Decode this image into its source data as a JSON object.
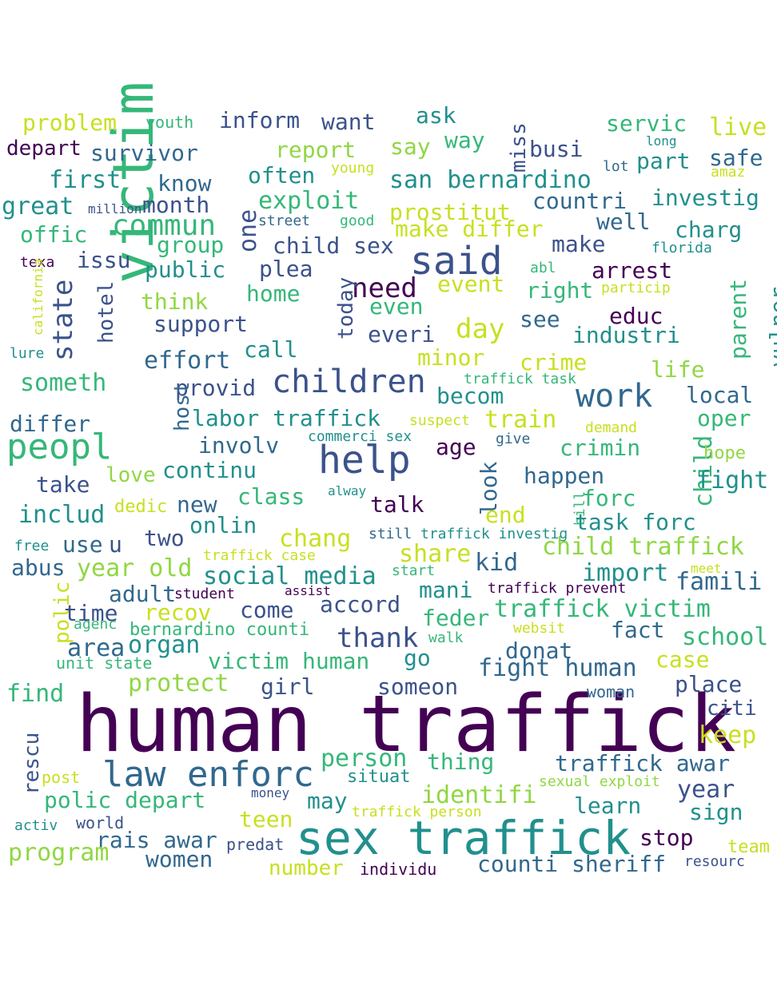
{
  "word_cloud": {
    "palette": {
      "purple": "#440154",
      "indigo": "#3b528b",
      "blue": "#31688e",
      "teal": "#21908d",
      "green": "#35b779",
      "lime": "#90d743",
      "yellow": "#c8e020"
    },
    "words": [
      {
        "text": "human traffick",
        "color": "#440154"
      },
      {
        "text": "sex traffick",
        "color": "#21908d"
      },
      {
        "text": "victim",
        "color": "#35b779"
      },
      {
        "text": "law enforc",
        "color": "#31688e"
      },
      {
        "text": "help",
        "color": "#3b528b"
      },
      {
        "text": "said",
        "color": "#3b528b"
      },
      {
        "text": "peopl",
        "color": "#35b779"
      },
      {
        "text": "work",
        "color": "#31688e"
      },
      {
        "text": "children",
        "color": "#3b528b"
      },
      {
        "text": "state",
        "color": "#3b528b"
      },
      {
        "text": "commun",
        "color": "#35b779"
      },
      {
        "text": "child traffick",
        "color": "#90d743"
      },
      {
        "text": "traffick victim",
        "color": "#35b779"
      },
      {
        "text": "polic depart",
        "color": "#35b779"
      },
      {
        "text": "counti sheriff",
        "color": "#31688e"
      },
      {
        "text": "traffick awar",
        "color": "#31688e"
      },
      {
        "text": "need",
        "color": "#440154"
      },
      {
        "text": "one",
        "color": "#3b528b"
      },
      {
        "text": "san bernardino",
        "color": "#21908d"
      },
      {
        "text": "problem",
        "color": "#c8e020"
      },
      {
        "text": "youth",
        "color": "#35b779"
      },
      {
        "text": "inform",
        "color": "#3b528b"
      },
      {
        "text": "want",
        "color": "#3b528b"
      },
      {
        "text": "ask",
        "color": "#21908d"
      },
      {
        "text": "miss",
        "color": "#3b528b"
      },
      {
        "text": "servic",
        "color": "#35b779"
      },
      {
        "text": "live",
        "color": "#c8e020"
      },
      {
        "text": "depart",
        "color": "#440154"
      },
      {
        "text": "survivor",
        "color": "#31688e"
      },
      {
        "text": "report",
        "color": "#90d743"
      },
      {
        "text": "say",
        "color": "#90d743"
      },
      {
        "text": "way",
        "color": "#35b779"
      },
      {
        "text": "busi",
        "color": "#3b528b"
      },
      {
        "text": "long",
        "color": "#21908d"
      },
      {
        "text": "safe",
        "color": "#31688e"
      },
      {
        "text": "first",
        "color": "#21908d"
      },
      {
        "text": "know",
        "color": "#31688e"
      },
      {
        "text": "often",
        "color": "#21908d"
      },
      {
        "text": "young",
        "color": "#c8e020"
      },
      {
        "text": "part",
        "color": "#21908d"
      },
      {
        "text": "lot",
        "color": "#31688e"
      },
      {
        "text": "amaz",
        "color": "#c8e020"
      },
      {
        "text": "great",
        "color": "#21908d"
      },
      {
        "text": "million",
        "color": "#3b528b"
      },
      {
        "text": "month",
        "color": "#3b528b"
      },
      {
        "text": "exploit",
        "color": "#35b779"
      },
      {
        "text": "prostitut",
        "color": "#c8e020"
      },
      {
        "text": "countri",
        "color": "#31688e"
      },
      {
        "text": "investig",
        "color": "#21908d"
      },
      {
        "text": "offic",
        "color": "#35b779"
      },
      {
        "text": "street",
        "color": "#31688e"
      },
      {
        "text": "good",
        "color": "#35b779"
      },
      {
        "text": "make differ",
        "color": "#c8e020"
      },
      {
        "text": "well",
        "color": "#31688e"
      },
      {
        "text": "charg",
        "color": "#21908d"
      },
      {
        "text": "group",
        "color": "#35b779"
      },
      {
        "text": "child sex",
        "color": "#3b528b"
      },
      {
        "text": "make",
        "color": "#3b528b"
      },
      {
        "text": "florida",
        "color": "#21908d"
      },
      {
        "text": "texa",
        "color": "#440154"
      },
      {
        "text": "issu",
        "color": "#3b528b"
      },
      {
        "text": "public",
        "color": "#21908d"
      },
      {
        "text": "plea",
        "color": "#3b528b"
      },
      {
        "text": "abl",
        "color": "#35b779"
      },
      {
        "text": "arrest",
        "color": "#440154"
      },
      {
        "text": "california",
        "color": "#c8e020"
      },
      {
        "text": "hotel",
        "color": "#3b528b"
      },
      {
        "text": "think",
        "color": "#90d743"
      },
      {
        "text": "home",
        "color": "#35b779"
      },
      {
        "text": "today",
        "color": "#3b528b"
      },
      {
        "text": "event",
        "color": "#c8e020"
      },
      {
        "text": "right",
        "color": "#35b779"
      },
      {
        "text": "particip",
        "color": "#c8e020"
      },
      {
        "text": "parent",
        "color": "#35b779"
      },
      {
        "text": "vulner",
        "color": "#21908d"
      },
      {
        "text": "even",
        "color": "#35b779"
      },
      {
        "text": "educ",
        "color": "#440154"
      },
      {
        "text": "support",
        "color": "#3b528b"
      },
      {
        "text": "see",
        "color": "#31688e"
      },
      {
        "text": "day",
        "color": "#c8e020"
      },
      {
        "text": "everi",
        "color": "#3b528b"
      },
      {
        "text": "industri",
        "color": "#21908d"
      },
      {
        "text": "lure",
        "color": "#21908d"
      },
      {
        "text": "effort",
        "color": "#31688e"
      },
      {
        "text": "call",
        "color": "#21908d"
      },
      {
        "text": "minor",
        "color": "#c8e020"
      },
      {
        "text": "crime",
        "color": "#c8e020"
      },
      {
        "text": "life",
        "color": "#90d743"
      },
      {
        "text": "someth",
        "color": "#35b779"
      },
      {
        "text": "provid",
        "color": "#3b528b"
      },
      {
        "text": "traffick task",
        "color": "#35b779"
      },
      {
        "text": "becom",
        "color": "#21908d"
      },
      {
        "text": "local",
        "color": "#31688e"
      },
      {
        "text": "host",
        "color": "#31688e"
      },
      {
        "text": "differ",
        "color": "#31688e"
      },
      {
        "text": "labor traffick",
        "color": "#21908d"
      },
      {
        "text": "suspect",
        "color": "#c8e020"
      },
      {
        "text": "train",
        "color": "#c8e020"
      },
      {
        "text": "oper",
        "color": "#35b779"
      },
      {
        "text": "demand",
        "color": "#c8e020"
      },
      {
        "text": "involv",
        "color": "#31688e"
      },
      {
        "text": "commerci sex",
        "color": "#21908d"
      },
      {
        "text": "give",
        "color": "#31688e"
      },
      {
        "text": "age",
        "color": "#440154"
      },
      {
        "text": "crimin",
        "color": "#35b779"
      },
      {
        "text": "child",
        "color": "#35b779"
      },
      {
        "text": "hope",
        "color": "#90d743"
      },
      {
        "text": "love",
        "color": "#90d743"
      },
      {
        "text": "continu",
        "color": "#21908d"
      },
      {
        "text": "happen",
        "color": "#31688e"
      },
      {
        "text": "fight",
        "color": "#21908d"
      },
      {
        "text": "take",
        "color": "#3b528b"
      },
      {
        "text": "look",
        "color": "#31688e"
      },
      {
        "text": "new",
        "color": "#31688e"
      },
      {
        "text": "class",
        "color": "#35b779"
      },
      {
        "text": "alway",
        "color": "#21908d"
      },
      {
        "text": "talk",
        "color": "#440154"
      },
      {
        "text": "forc",
        "color": "#35b779"
      },
      {
        "text": "dedic",
        "color": "#c8e020"
      },
      {
        "text": "end",
        "color": "#c8e020"
      },
      {
        "text": "bill",
        "color": "#35b779"
      },
      {
        "text": "includ",
        "color": "#21908d"
      },
      {
        "text": "onlin",
        "color": "#21908d"
      },
      {
        "text": "task forc",
        "color": "#21908d"
      },
      {
        "text": "chang",
        "color": "#c8e020"
      },
      {
        "text": "still",
        "color": "#31688e"
      },
      {
        "text": "traffick investig",
        "color": "#21908d"
      },
      {
        "text": "free",
        "color": "#21908d"
      },
      {
        "text": "use",
        "color": "#31688e"
      },
      {
        "text": "u",
        "color": "#3b528b"
      },
      {
        "text": "two",
        "color": "#3b528b"
      },
      {
        "text": "traffick case",
        "color": "#c8e020"
      },
      {
        "text": "share",
        "color": "#c8e020"
      },
      {
        "text": "kid",
        "color": "#31688e"
      },
      {
        "text": "abus",
        "color": "#31688e"
      },
      {
        "text": "year old",
        "color": "#90d743"
      },
      {
        "text": "start",
        "color": "#35b779"
      },
      {
        "text": "import",
        "color": "#21908d"
      },
      {
        "text": "meet",
        "color": "#c8e020"
      },
      {
        "text": "social media",
        "color": "#21908d"
      },
      {
        "text": "famili",
        "color": "#31688e"
      },
      {
        "text": "adult",
        "color": "#31688e"
      },
      {
        "text": "student",
        "color": "#440154"
      },
      {
        "text": "assist",
        "color": "#440154"
      },
      {
        "text": "mani",
        "color": "#21908d"
      },
      {
        "text": "traffick prevent",
        "color": "#440154"
      },
      {
        "text": "polic",
        "color": "#c8e020"
      },
      {
        "text": "time",
        "color": "#3b528b"
      },
      {
        "text": "recov",
        "color": "#c8e020"
      },
      {
        "text": "come",
        "color": "#3b528b"
      },
      {
        "text": "accord",
        "color": "#3b528b"
      },
      {
        "text": "feder",
        "color": "#35b779"
      },
      {
        "text": "agenc",
        "color": "#35b779"
      },
      {
        "text": "bernardino counti",
        "color": "#35b779"
      },
      {
        "text": "websit",
        "color": "#c8e020"
      },
      {
        "text": "fact",
        "color": "#31688e"
      },
      {
        "text": "area",
        "color": "#31688e"
      },
      {
        "text": "organ",
        "color": "#21908d"
      },
      {
        "text": "thank",
        "color": "#3b528b"
      },
      {
        "text": "walk",
        "color": "#35b779"
      },
      {
        "text": "school",
        "color": "#35b779"
      },
      {
        "text": "unit state",
        "color": "#35b779"
      },
      {
        "text": "victim human",
        "color": "#35b779"
      },
      {
        "text": "go",
        "color": "#21908d"
      },
      {
        "text": "donat",
        "color": "#31688e"
      },
      {
        "text": "case",
        "color": "#c8e020"
      },
      {
        "text": "fight human",
        "color": "#31688e"
      },
      {
        "text": "find",
        "color": "#35b779"
      },
      {
        "text": "protect",
        "color": "#90d743"
      },
      {
        "text": "girl",
        "color": "#3b528b"
      },
      {
        "text": "someon",
        "color": "#3b528b"
      },
      {
        "text": "woman",
        "color": "#31688e"
      },
      {
        "text": "place",
        "color": "#3b528b"
      },
      {
        "text": "citi",
        "color": "#3b528b"
      },
      {
        "text": "keep",
        "color": "#c8e020"
      },
      {
        "text": "rescu",
        "color": "#3b528b"
      },
      {
        "text": "person",
        "color": "#35b779"
      },
      {
        "text": "thing",
        "color": "#35b779"
      },
      {
        "text": "post",
        "color": "#c8e020"
      },
      {
        "text": "situat",
        "color": "#21908d"
      },
      {
        "text": "sexual exploit",
        "color": "#90d743"
      },
      {
        "text": "year",
        "color": "#3b528b"
      },
      {
        "text": "money",
        "color": "#3b528b"
      },
      {
        "text": "identifi",
        "color": "#90d743"
      },
      {
        "text": "may",
        "color": "#21908d"
      },
      {
        "text": "learn",
        "color": "#21908d"
      },
      {
        "text": "sign",
        "color": "#21908d"
      },
      {
        "text": "teen",
        "color": "#c8e020"
      },
      {
        "text": "traffick person",
        "color": "#c8e020"
      },
      {
        "text": "activ",
        "color": "#21908d"
      },
      {
        "text": "world",
        "color": "#3b528b"
      },
      {
        "text": "rais awar",
        "color": "#31688e"
      },
      {
        "text": "predat",
        "color": "#3b528b"
      },
      {
        "text": "stop",
        "color": "#440154"
      },
      {
        "text": "team",
        "color": "#c8e020"
      },
      {
        "text": "program",
        "color": "#90d743"
      },
      {
        "text": "women",
        "color": "#31688e"
      },
      {
        "text": "number",
        "color": "#c8e020"
      },
      {
        "text": "individu",
        "color": "#440154"
      },
      {
        "text": "resourc",
        "color": "#3b528b"
      }
    ]
  }
}
